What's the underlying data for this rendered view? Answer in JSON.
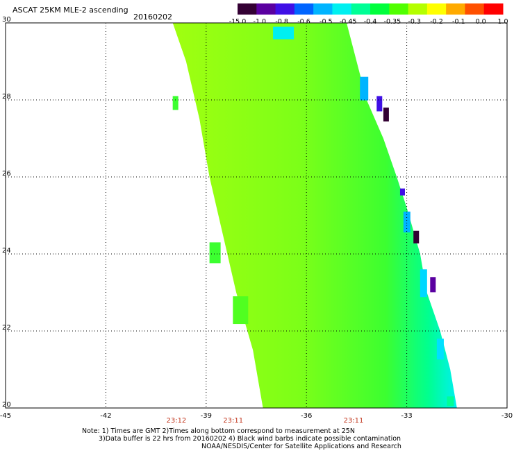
{
  "header": {
    "title": "ASCAT 25KM MLE-2 ascending",
    "date": "20160202"
  },
  "colorbar": {
    "labels": [
      "-15.0",
      "-1.0",
      "-0.8",
      "-0.6",
      "-0.5",
      "-0.45",
      "-0.4",
      "-0.35",
      "-0.3",
      "-0.2",
      "-0.1",
      "0.0",
      "1.0"
    ],
    "colors": [
      "#330033",
      "#5a00a0",
      "#3f0fe6",
      "#0064ff",
      "#00b4ff",
      "#00f0f0",
      "#00ff96",
      "#00ff3c",
      "#50ff00",
      "#b4ff00",
      "#ffff00",
      "#ffaa00",
      "#ff5000",
      "#ff0000"
    ]
  },
  "map": {
    "lon_ticks": [
      "-45",
      "-42",
      "-39",
      "-36",
      "-33",
      "-30"
    ],
    "lat_ticks": [
      "20",
      "22",
      "24",
      "26",
      "28",
      "30"
    ],
    "lon_range": [
      -45,
      -30
    ],
    "lat_range": [
      20,
      30
    ],
    "grid": "dotted",
    "swath_color": "#8cff10"
  },
  "times": [
    {
      "label": "23:12",
      "lon": -39.9
    },
    {
      "label": "23:11",
      "lon": -38.2
    },
    {
      "label": "23:11",
      "lon": -34.6
    }
  ],
  "notes": {
    "line1": "Note: 1) Times are GMT 2)Times along bottom correspond to measurement at 25N",
    "line2": "3)Data buffer is 22 hrs from 20160202 4) Black wind barbs indicate possible contamination",
    "line3": "NOAA/NESDIS/Center for Satellite Applications and Research"
  }
}
